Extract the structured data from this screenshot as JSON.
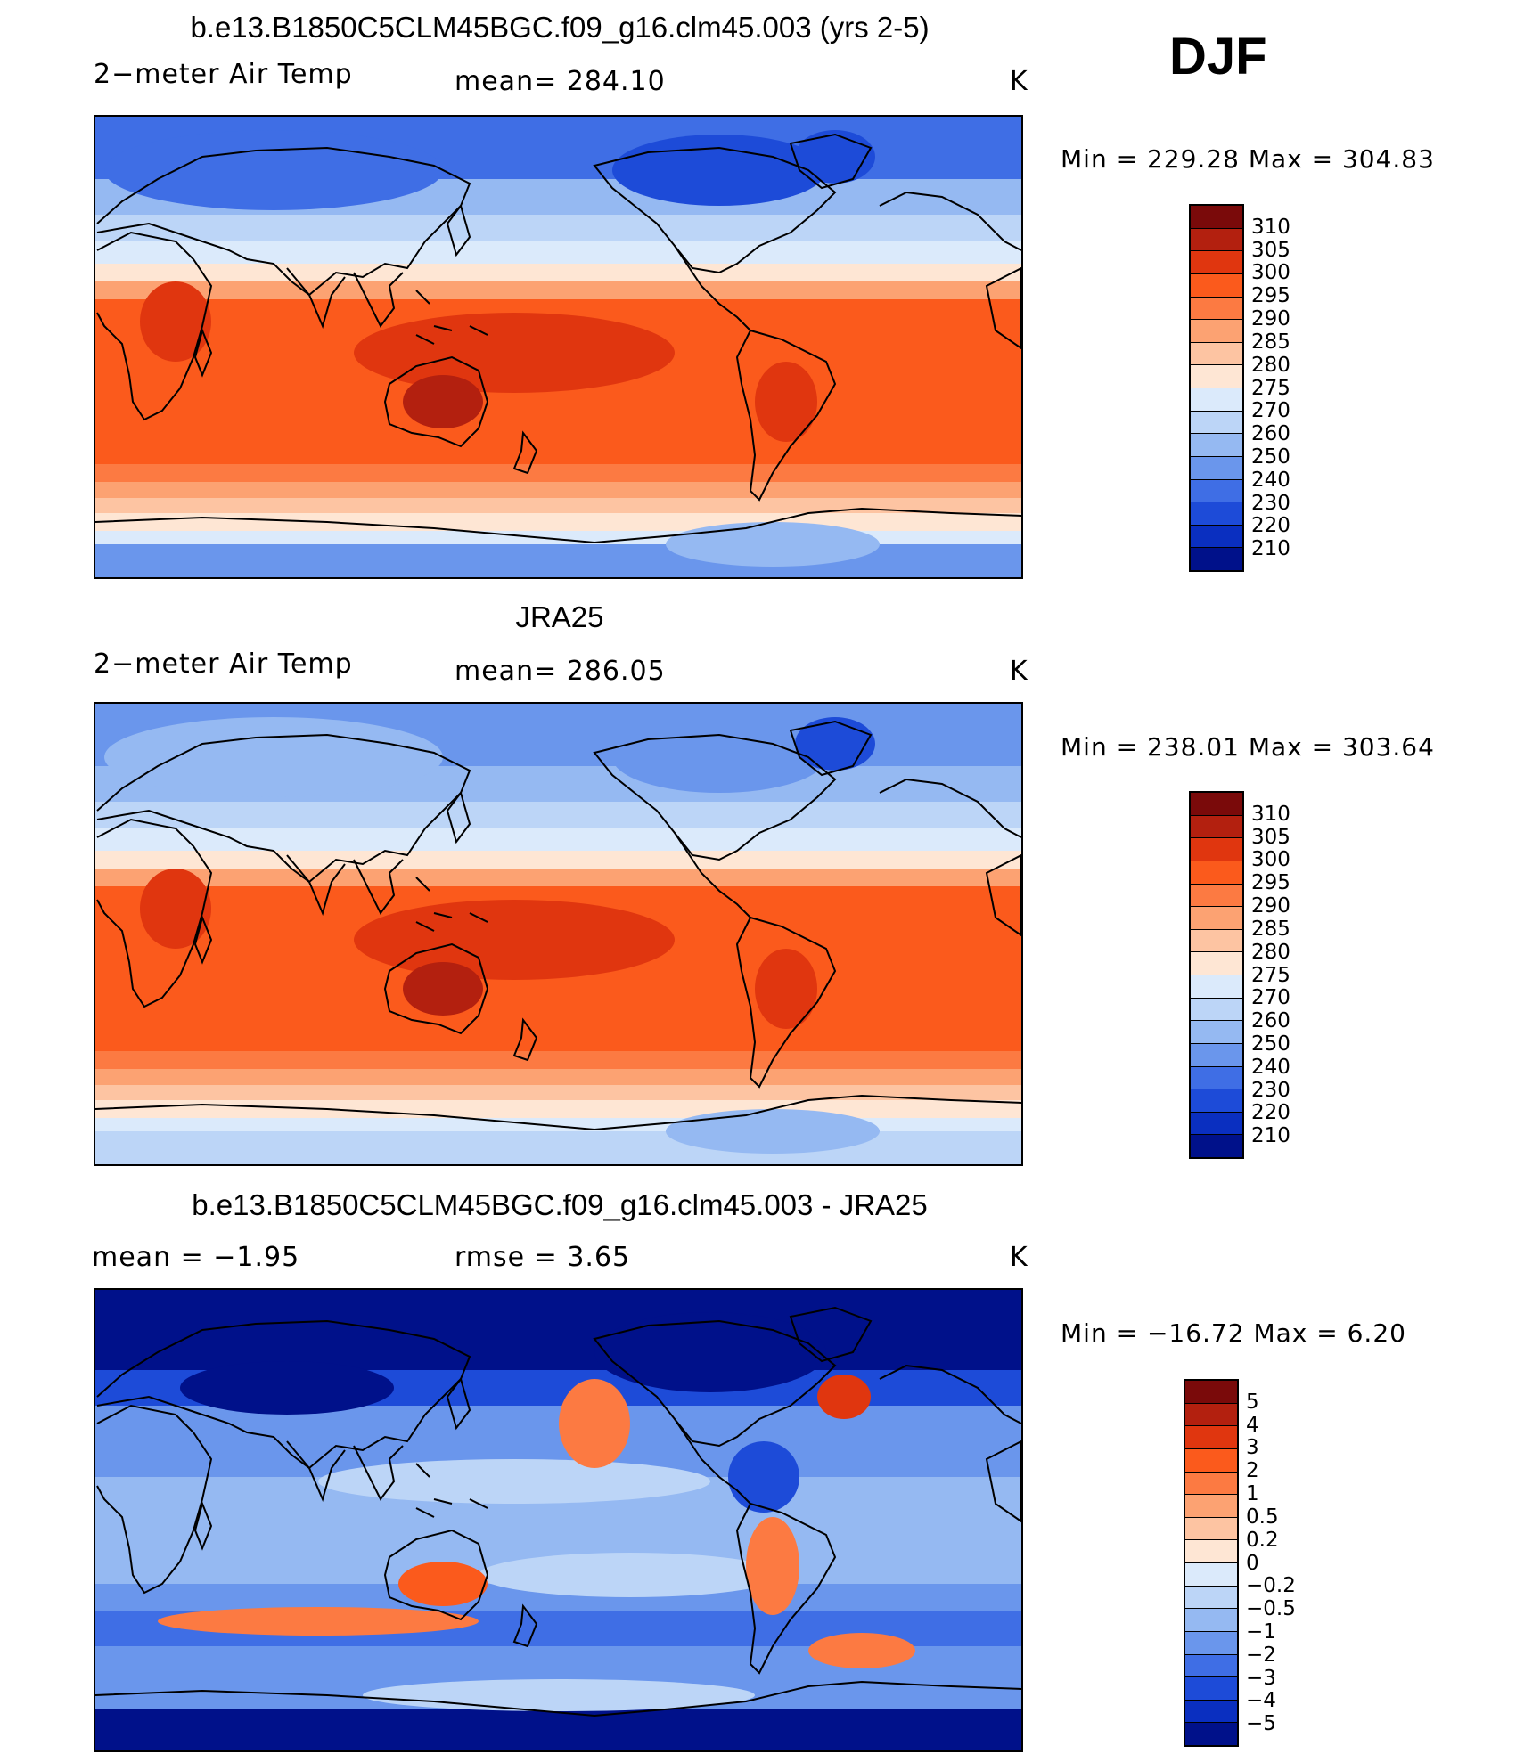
{
  "header": {
    "season": "DJF"
  },
  "panels": [
    {
      "title": "b.e13.B1850C5CLM45BGC.f09_g16.clm45.003 (yrs 2-5)",
      "left_text": "2−meter Air Temp",
      "center_text": "mean=  284.10",
      "units": "K",
      "minmax": "Min  =  229.28  Max  =  304.83",
      "scheme": "abs",
      "kind": "model"
    },
    {
      "title": "JRA25",
      "left_text": "2−meter Air Temp",
      "center_text": "mean=  286.05",
      "units": "K",
      "minmax": "Min  =  238.01  Max  =  303.64",
      "scheme": "abs",
      "kind": "obs"
    },
    {
      "title": "b.e13.B1850C5CLM45BGC.f09_g16.clm45.003 - JRA25",
      "left_text": "mean  =    −1.95",
      "center_text": "rmse  =      3.65",
      "units": "K",
      "minmax": "Min  =  −16.72  Max  =      6.20",
      "scheme": "diff",
      "kind": "diff"
    }
  ],
  "colorbars": {
    "abs": {
      "labels": [
        "310",
        "305",
        "300",
        "295",
        "290",
        "285",
        "280",
        "275",
        "270",
        "260",
        "250",
        "240",
        "230",
        "220",
        "210"
      ],
      "colors": [
        "#7a0a0a",
        "#b3200f",
        "#e0360f",
        "#fb5a1c",
        "#fc7a42",
        "#fca272",
        "#fdc4a2",
        "#fee6d4",
        "#dbeafb",
        "#bcd5f7",
        "#95b9f2",
        "#6a96ec",
        "#3f6ee5",
        "#1d4bd8",
        "#0a2fc0",
        "#00118a"
      ]
    },
    "diff": {
      "labels": [
        "5",
        "4",
        "3",
        "2",
        "1",
        "0.5",
        "0.2",
        "0",
        "−0.2",
        "−0.5",
        "−1",
        "−2",
        "−3",
        "−4",
        "−5"
      ],
      "colors": [
        "#7a0a0a",
        "#b3200f",
        "#e0360f",
        "#fb5a1c",
        "#fc7a42",
        "#fca272",
        "#fdc4a2",
        "#fee6d4",
        "#dbeafb",
        "#bcd5f7",
        "#95b9f2",
        "#6a96ec",
        "#3f6ee5",
        "#1d4bd8",
        "#0a2fc0",
        "#00118a"
      ]
    }
  },
  "chart_data": {
    "type": "heatmap",
    "title": "DJF 2-meter Air Temp (K)",
    "variable": "2-meter Air Temp",
    "units": "K",
    "series": [
      {
        "name": "b.e13.B1850C5CLM45BGC.f09_g16.clm45.003 (yrs 2-5)",
        "mean": 284.1,
        "min": 229.28,
        "max": 304.83
      },
      {
        "name": "JRA25",
        "mean": 286.05,
        "min": 238.01,
        "max": 303.64
      },
      {
        "name": "b.e13.B1850C5CLM45BGC.f09_g16.clm45.003 - JRA25",
        "mean": -1.95,
        "rmse": 3.65,
        "min": -16.72,
        "max": 6.2
      }
    ],
    "contour_levels_abs": [
      210,
      220,
      230,
      240,
      250,
      260,
      270,
      275,
      280,
      285,
      290,
      295,
      300,
      305,
      310
    ],
    "contour_levels_diff": [
      -5,
      -4,
      -3,
      -2,
      -1,
      -0.5,
      -0.2,
      0,
      0.2,
      0.5,
      1,
      2,
      3,
      4,
      5
    ]
  }
}
